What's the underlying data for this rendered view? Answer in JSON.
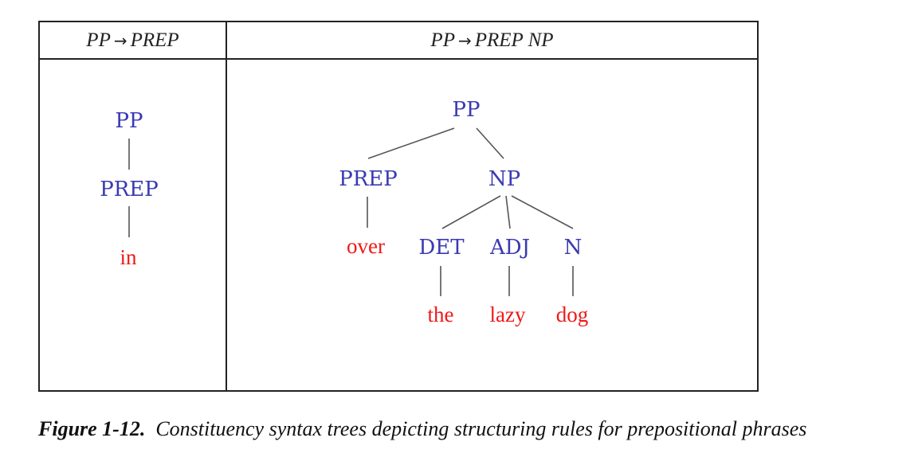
{
  "headers": {
    "left": {
      "lhs": "PP",
      "arrow": "→",
      "rhs": "PREP"
    },
    "right": {
      "lhs": "PP",
      "arrow": "→",
      "rhs": "PREP NP"
    }
  },
  "tree_left": {
    "pp": "PP",
    "prep": "PREP",
    "word": "in"
  },
  "tree_right": {
    "pp": "PP",
    "prep": "PREP",
    "np": "NP",
    "det": "DET",
    "adj": "ADJ",
    "n": "N",
    "w_over": "over",
    "w_the": "the",
    "w_lazy": "lazy",
    "w_dog": "dog"
  },
  "caption": {
    "figure_label": "Figure 1-12.",
    "text": "Constituency syntax trees depicting structuring rules for prepositional phrases"
  },
  "colors": {
    "nonterminal": "#3a3ab3",
    "terminal": "#f01818",
    "border": "#222222"
  }
}
